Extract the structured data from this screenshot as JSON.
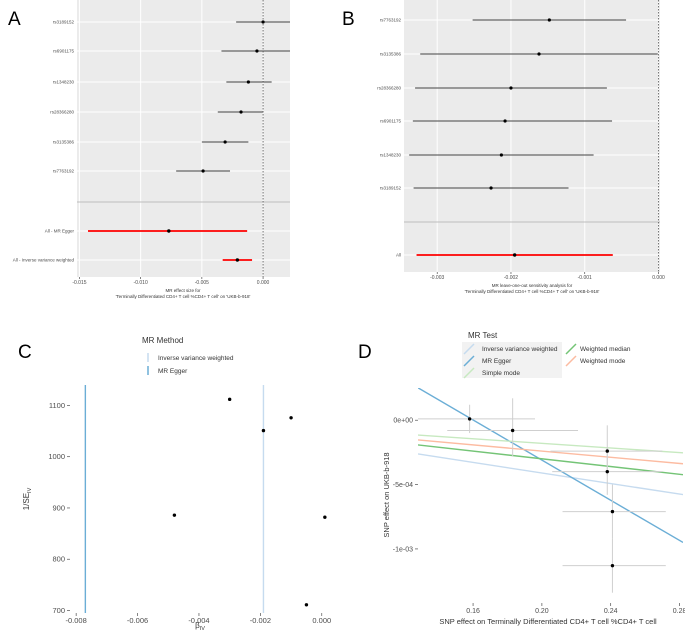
{
  "panels": {
    "A": {
      "label": "A",
      "type": "forest",
      "xlabel_line1": "MR effect size for",
      "xlabel_line2": "'Terminally Differentiated CD4+ T cell %CD4+ T cell' on 'UKB-b-918'",
      "xlim": [
        -0.0152,
        0.0022
      ],
      "ticks": [
        -0.015,
        -0.01,
        -0.005,
        0
      ],
      "tick_labels": [
        "-0.015",
        "-0.010",
        "-0.005",
        "0.000"
      ],
      "snps": [
        {
          "name": "rs3189152",
          "est": 0.0,
          "lo": -0.0022,
          "hi": 0.0022
        },
        {
          "name": "rs6901175",
          "est": -0.0005,
          "lo": -0.0034,
          "hi": 0.0022
        },
        {
          "name": "rs1348230",
          "est": -0.0012,
          "lo": -0.003,
          "hi": 0.0007
        },
        {
          "name": "rs28366280",
          "est": -0.0018,
          "lo": -0.0037,
          "hi": 0.0
        },
        {
          "name": "rs3135386",
          "est": -0.0031,
          "lo": -0.005,
          "hi": -0.0012
        },
        {
          "name": "rs7763192",
          "est": -0.0049,
          "lo": -0.0071,
          "hi": -0.0027
        }
      ],
      "summary": [
        {
          "name": "All - MR Egger",
          "est": -0.0077,
          "lo": -0.0143,
          "hi": -0.0013
        },
        {
          "name": "All - Inverse variance weighted",
          "est": -0.0021,
          "lo": -0.0033,
          "hi": -0.0009
        }
      ]
    },
    "B": {
      "label": "B",
      "type": "leave-one-out",
      "xlabel_line1": "MR leave-one-out sensitivity analysis for",
      "xlabel_line2": "'Terminally Differentiated CD4+ T cell %CD4+ T cell' on 'UKB-b-918'",
      "xlim": [
        -0.00345,
        2e-05
      ],
      "ticks": [
        -0.003,
        -0.002,
        -0.001,
        0
      ],
      "tick_labels": [
        "-0.003",
        "-0.002",
        "-0.001",
        "0.000"
      ],
      "snps": [
        {
          "name": "rs7763192",
          "est": -0.00148,
          "lo": -0.00252,
          "hi": -0.00044
        },
        {
          "name": "rs3135386",
          "est": -0.00162,
          "lo": -0.00323,
          "hi": -1e-05
        },
        {
          "name": "rs28366280",
          "est": -0.002,
          "lo": -0.0033,
          "hi": -0.0007
        },
        {
          "name": "rs6901175",
          "est": -0.00208,
          "lo": -0.00333,
          "hi": -0.00063
        },
        {
          "name": "rs1348230",
          "est": -0.00213,
          "lo": -0.00338,
          "hi": -0.00088
        },
        {
          "name": "rs3189152",
          "est": -0.00227,
          "lo": -0.00332,
          "hi": -0.00122
        }
      ],
      "summary": [
        {
          "name": "All",
          "est": -0.00195,
          "lo": -0.00328,
          "hi": -0.00062
        }
      ]
    },
    "C": {
      "label": "C",
      "type": "funnel",
      "legend_title": "MR Method",
      "legend_items": [
        "Inverse variance weighted",
        "MR Egger"
      ],
      "legend_colors": [
        "#c6dbef",
        "#6baed6"
      ],
      "xlabel": "β",
      "xlabel_sub": "IV",
      "ylabel": "1/SE",
      "ylabel_sub": "IV",
      "xlim": [
        -0.0082,
        0.0003
      ],
      "ylim": [
        695,
        1140
      ],
      "xticks": [
        -0.008,
        -0.006,
        -0.004,
        -0.002,
        0
      ],
      "xtick_labels": [
        "-0.008",
        "-0.006",
        "-0.004",
        "-0.002",
        "0.000"
      ],
      "yticks": [
        700,
        800,
        900,
        1000,
        1100
      ],
      "ytick_labels": [
        "700",
        "800",
        "900",
        "1000",
        "1100"
      ],
      "vlines": [
        {
          "method": "Inverse variance weighted",
          "x": -0.0019
        },
        {
          "method": "MR Egger",
          "x": -0.0077
        }
      ],
      "points": [
        {
          "x": -0.003,
          "y": 1112
        },
        {
          "x": -0.001,
          "y": 1076
        },
        {
          "x": -0.0019,
          "y": 1051
        },
        {
          "x": -0.0048,
          "y": 886
        },
        {
          "x": 0.0001,
          "y": 882
        },
        {
          "x": -0.0005,
          "y": 711
        }
      ]
    },
    "D": {
      "label": "D",
      "type": "scatter",
      "legend_title": "MR Test",
      "legend_items": [
        "Inverse variance weighted",
        "MR Egger",
        "Simple mode",
        "Weighted median",
        "Weighted mode"
      ],
      "legend_colors": [
        "#c6dbef",
        "#6baed6",
        "#c7e9c0",
        "#74c476",
        "#fcbba1"
      ],
      "xlabel": "SNP effect on Terminally Differentiated CD4+ T cell %CD4+ T cell",
      "ylabel": "SNP effect on UKB-b-918",
      "xlim": [
        0.128,
        0.282
      ],
      "ylim": [
        -0.00142,
        0.00025
      ],
      "xticks": [
        0.16,
        0.2,
        0.24,
        0.28
      ],
      "xtick_labels": [
        "0.16",
        "0.20",
        "0.24",
        "0.28"
      ],
      "yticks": [
        0,
        -0.0005,
        -0.001
      ],
      "ytick_labels": [
        "0e+00",
        "-5e-04",
        "-1e-03"
      ],
      "lines": [
        {
          "method": "Inverse variance weighted",
          "slope": -0.00205,
          "intercept": 0
        },
        {
          "method": "MR Egger",
          "slope": -0.0078,
          "intercept": 0.00125
        },
        {
          "method": "Simple mode",
          "slope": -0.0009,
          "intercept": 0
        },
        {
          "method": "Weighted median",
          "slope": -0.0015,
          "intercept": 0
        },
        {
          "method": "Weighted mode",
          "slope": -0.0012,
          "intercept": 0
        }
      ],
      "points": [
        {
          "x": 0.158,
          "y": 1e-05,
          "xlo": 0.12,
          "xhi": 0.196,
          "ylo": -0.0001,
          "yhi": 0.00012
        },
        {
          "x": 0.183,
          "y": -8e-05,
          "xlo": 0.145,
          "xhi": 0.221,
          "ylo": -0.00028,
          "yhi": 0.00017
        },
        {
          "x": 0.238,
          "y": -0.00024,
          "xlo": 0.205,
          "xhi": 0.27,
          "ylo": -0.00043,
          "yhi": -4e-05
        },
        {
          "x": 0.238,
          "y": -0.0004,
          "xlo": 0.206,
          "xhi": 0.27,
          "ylo": -0.00058,
          "yhi": -0.00022
        },
        {
          "x": 0.241,
          "y": -0.00071,
          "xlo": 0.212,
          "xhi": 0.272,
          "ylo": -0.00092,
          "yhi": -0.0005
        },
        {
          "x": 0.241,
          "y": -0.00113,
          "xlo": 0.212,
          "xhi": 0.272,
          "ylo": -0.00134,
          "yhi": -0.00092
        }
      ]
    }
  },
  "chart_data": [
    {
      "type": "forest",
      "title": "A",
      "xlabel": "MR effect size for 'Terminally Differentiated CD4+ T cell %CD4+ T cell' on 'UKB-b-918'",
      "categories": [
        "rs3189152",
        "rs6901175",
        "rs1348230",
        "rs28366280",
        "rs3135386",
        "rs7763192",
        "All - MR Egger",
        "All - Inverse variance weighted"
      ],
      "values": [
        0.0,
        -0.0005,
        -0.0012,
        -0.0018,
        -0.0031,
        -0.0049,
        -0.0077,
        -0.0021
      ]
    },
    {
      "type": "forest",
      "title": "B",
      "xlabel": "MR leave-one-out sensitivity analysis for 'Terminally Differentiated CD4+ T cell %CD4+ T cell' on 'UKB-b-918'",
      "categories": [
        "rs7763192",
        "rs3135386",
        "rs28366280",
        "rs6901175",
        "rs1348230",
        "rs3189152",
        "All"
      ],
      "values": [
        -0.00148,
        -0.00162,
        -0.002,
        -0.00208,
        -0.00213,
        -0.00227,
        -0.00195
      ]
    },
    {
      "type": "scatter",
      "title": "C",
      "xlabel": "βIV",
      "ylabel": "1/SEIV",
      "x": [
        -0.003,
        -0.001,
        -0.0019,
        -0.0048,
        0.0001,
        -0.0005
      ],
      "y": [
        1112,
        1076,
        1051,
        886,
        882,
        711
      ]
    },
    {
      "type": "scatter",
      "title": "D",
      "xlabel": "SNP effect on Terminally Differentiated CD4+ T cell %CD4+ T cell",
      "ylabel": "SNP effect on UKB-b-918",
      "x": [
        0.158,
        0.183,
        0.238,
        0.238,
        0.241,
        0.241
      ],
      "y": [
        1e-05,
        -8e-05,
        -0.00024,
        -0.0004,
        -0.00071,
        -0.00113
      ]
    }
  ]
}
